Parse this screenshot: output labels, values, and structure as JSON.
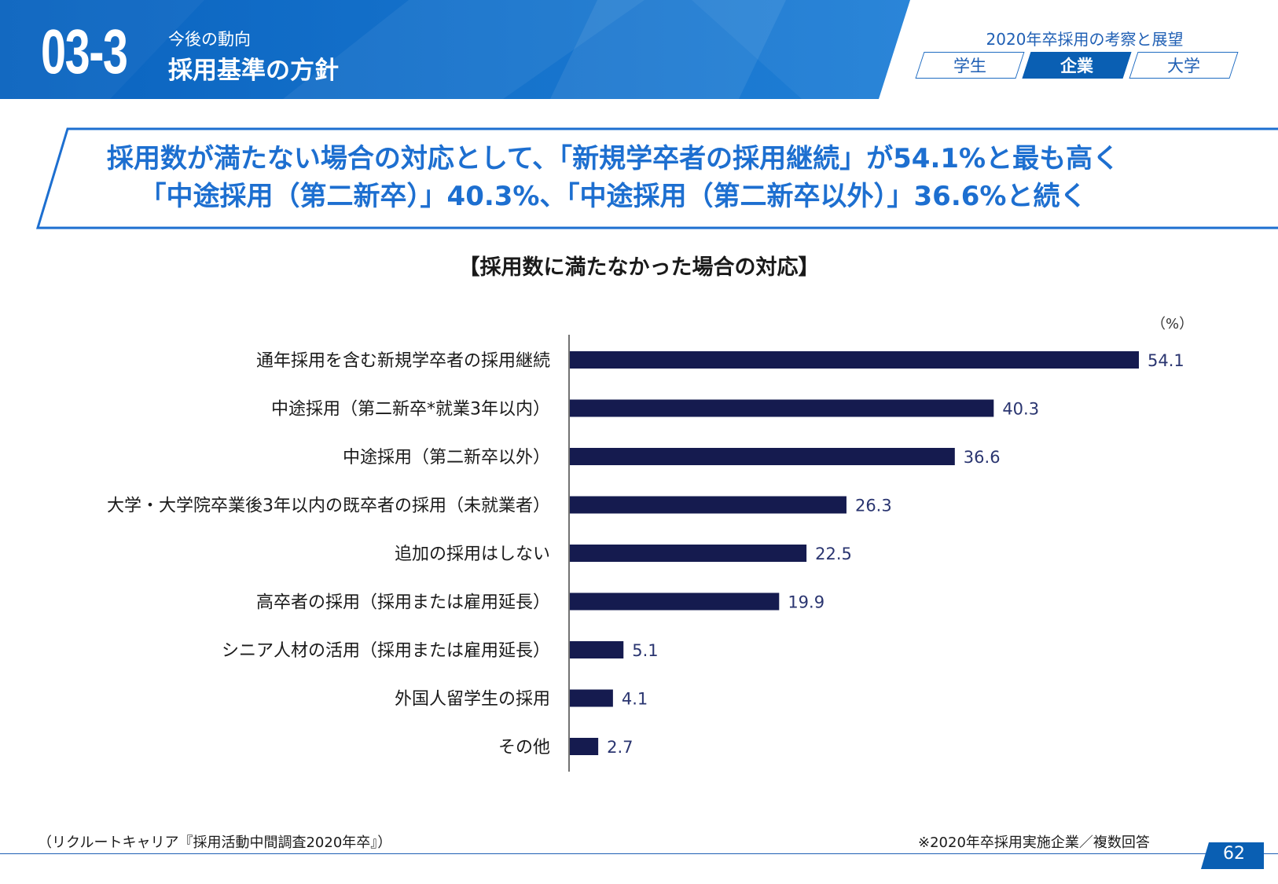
{
  "header": {
    "section_number": "03-3",
    "section_subtitle": "今後の動向",
    "section_title": "採用基準の方針",
    "report_title": "2020年卒採用の考察と展望",
    "tabs": [
      {
        "label": "学生",
        "active": false
      },
      {
        "label": "企業",
        "active": true
      },
      {
        "label": "大学",
        "active": false
      }
    ]
  },
  "headline": {
    "line1": "採用数が満たない場合の対応として、「新規学卒者の採用継続」が54.1%と最も高く",
    "line2": "「中途採用（第二新卒）」40.3%、「中途採用（第二新卒以外）」36.6%と続く"
  },
  "chart_data": {
    "type": "bar",
    "orientation": "horizontal",
    "title": "【採用数に満たなかった場合の対応】",
    "unit": "（%）",
    "categories": [
      "通年採用を含む新規学卒者の採用継続",
      "中途採用（第二新卒*就業3年以内）",
      "中途採用（第二新卒以外）",
      "大学・大学院卒業後3年以内の既卒者の採用（未就業者）",
      "追加の採用はしない",
      "高卒者の採用（採用または雇用延長）",
      "シニア人材の活用（採用または雇用延長）",
      "外国人留学生の採用",
      "その他"
    ],
    "values": [
      54.1,
      40.3,
      36.6,
      26.3,
      22.5,
      19.9,
      5.1,
      4.1,
      2.7
    ],
    "value_labels": [
      "54.1",
      "40.3",
      "36.6",
      "26.3",
      "22.5",
      "19.9",
      "5.1",
      "4.1",
      "2.7"
    ],
    "xlim": [
      0,
      60
    ],
    "bar_color": "#151b4f",
    "grid": false
  },
  "footer": {
    "source": "（リクルートキャリア『採用活動中間調査2020年卒』）",
    "note": "※2020年卒採用実施企業／複数回答",
    "page_number": "62"
  },
  "colors": {
    "header_blue": "#0a5fb3",
    "headline_blue": "#1d6fd0",
    "bar": "#151b4f"
  }
}
